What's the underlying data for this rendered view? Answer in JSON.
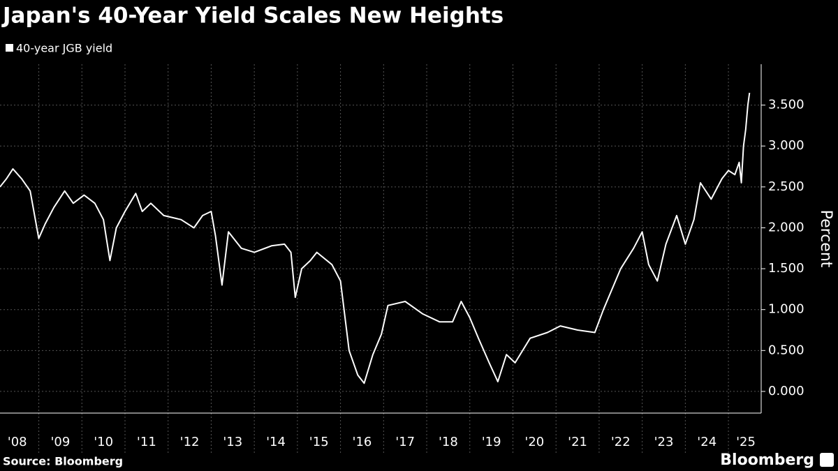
{
  "chart_data": {
    "type": "line",
    "title": "Japan's 40-Year Yield Scales New Heights",
    "y_label": "Percent",
    "source": "Source: Bloomberg",
    "brand": "Bloomberg",
    "x": [
      2008.1,
      2008.25,
      2008.4,
      2008.6,
      2008.8,
      2009.0,
      2009.15,
      2009.35,
      2009.6,
      2009.8,
      2010.05,
      2010.3,
      2010.5,
      2010.65,
      2010.8,
      2011.0,
      2011.25,
      2011.4,
      2011.6,
      2011.9,
      2012.3,
      2012.6,
      2012.8,
      2013.0,
      2013.1,
      2013.25,
      2013.4,
      2013.7,
      2014.0,
      2014.4,
      2014.7,
      2014.85,
      2014.95,
      2015.1,
      2015.3,
      2015.45,
      2015.8,
      2016.0,
      2016.2,
      2016.4,
      2016.55,
      2016.75,
      2016.95,
      2017.1,
      2017.5,
      2017.9,
      2018.3,
      2018.6,
      2018.8,
      2019.0,
      2019.2,
      2019.45,
      2019.65,
      2019.85,
      2020.05,
      2020.4,
      2020.8,
      2021.1,
      2021.5,
      2021.9,
      2022.1,
      2022.5,
      2022.8,
      2023.0,
      2023.15,
      2023.35,
      2023.55,
      2023.8,
      2024.0,
      2024.2,
      2024.35,
      2024.6,
      2024.85,
      2025.0,
      2025.15,
      2025.25,
      2025.3,
      2025.35,
      2025.4,
      2025.45,
      2025.49
    ],
    "series": [
      {
        "name": "40-year JGB yield",
        "color": "#ffffff",
        "values": [
          2.5,
          2.6,
          2.72,
          2.6,
          2.45,
          1.87,
          2.05,
          2.25,
          2.45,
          2.3,
          2.4,
          2.3,
          2.1,
          1.6,
          2.0,
          2.2,
          2.42,
          2.2,
          2.3,
          2.15,
          2.1,
          2.0,
          2.15,
          2.2,
          1.9,
          1.3,
          1.95,
          1.75,
          1.7,
          1.78,
          1.8,
          1.7,
          1.15,
          1.5,
          1.6,
          1.7,
          1.55,
          1.35,
          0.5,
          0.2,
          0.1,
          0.45,
          0.7,
          1.05,
          1.1,
          0.95,
          0.85,
          0.85,
          1.1,
          0.9,
          0.65,
          0.35,
          0.12,
          0.45,
          0.35,
          0.65,
          0.72,
          0.8,
          0.75,
          0.72,
          1.0,
          1.5,
          1.75,
          1.95,
          1.55,
          1.35,
          1.8,
          2.15,
          1.8,
          2.1,
          2.55,
          2.35,
          2.6,
          2.7,
          2.65,
          2.8,
          2.55,
          3.0,
          3.2,
          3.5,
          3.65
        ]
      }
    ],
    "xlim": [
      2008.1,
      2025.76
    ],
    "xticks": [
      {
        "value": 2008.5,
        "label": "'08"
      },
      {
        "value": 2009.5,
        "label": "'09"
      },
      {
        "value": 2010.5,
        "label": "'10"
      },
      {
        "value": 2011.5,
        "label": "'11"
      },
      {
        "value": 2012.5,
        "label": "'12"
      },
      {
        "value": 2013.5,
        "label": "'13"
      },
      {
        "value": 2014.5,
        "label": "'14"
      },
      {
        "value": 2015.5,
        "label": "'15"
      },
      {
        "value": 2016.5,
        "label": "'16"
      },
      {
        "value": 2017.5,
        "label": "'17"
      },
      {
        "value": 2018.5,
        "label": "'18"
      },
      {
        "value": 2019.5,
        "label": "'19"
      },
      {
        "value": 2020.5,
        "label": "'20"
      },
      {
        "value": 2021.5,
        "label": "'21"
      },
      {
        "value": 2022.5,
        "label": "'22"
      },
      {
        "value": 2023.5,
        "label": "'23"
      },
      {
        "value": 2024.5,
        "label": "'24"
      },
      {
        "value": 2025.5,
        "label": "'25"
      }
    ],
    "ylim": [
      -0.265,
      4.0
    ],
    "yticks": [
      {
        "value": 0,
        "label": "0.000"
      },
      {
        "value": 0.5,
        "label": "0.500"
      },
      {
        "value": 1,
        "label": "1.000"
      },
      {
        "value": 1.5,
        "label": "1.500"
      },
      {
        "value": 2,
        "label": "2.000"
      },
      {
        "value": 2.5,
        "label": "2.500"
      },
      {
        "value": 3,
        "label": "3.000"
      },
      {
        "value": 3.5,
        "label": "3.500"
      }
    ],
    "grid": true
  }
}
